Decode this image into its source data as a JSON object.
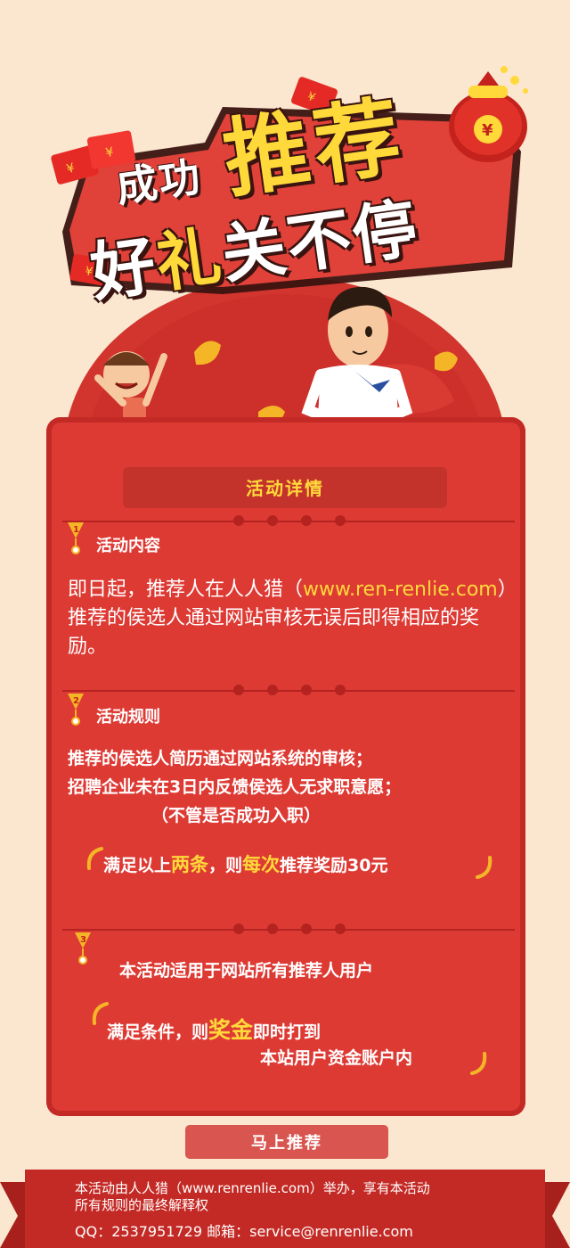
{
  "hero": {
    "title_line1": "成功",
    "title_big": "推荐",
    "title_line2_a": "好",
    "title_line2_hl": "礼",
    "title_line2_b": "关不停"
  },
  "panel": {
    "title": "活动详情",
    "section1": {
      "number": "1",
      "title": "活动内容",
      "body_a": "即日起，推荐人在人人猎（",
      "body_link": "www.ren-renlie.com",
      "body_b": "）推荐的侯选人通过网站审核无误后即得相应的奖励。"
    },
    "section2": {
      "number": "2",
      "title": "活动规则",
      "rule1": "推荐的侯选人简历通过网站系统的审核；",
      "rule2": "招聘企业未在3日内反馈侯选人无求职意愿；",
      "rule_note": "（不管是否成功入职）",
      "reward_a": "满足以上",
      "reward_hl1": "两条",
      "reward_b": "，则",
      "reward_hl2": "每次",
      "reward_c": "推荐奖励30元"
    },
    "section3": {
      "number": "3",
      "line1": "本活动适用于网站所有推荐人用户",
      "pay_a": "满足条件，则",
      "pay_hl": "奖金",
      "pay_b": "即时打到",
      "pay_line2": "本站用户资金账户内"
    }
  },
  "cta": {
    "label": "马上推荐"
  },
  "footer": {
    "line1": "本活动由人人猎（www.renrenlie.com）举办，享有本活动",
    "line2": "所有规则的最终解释权",
    "qq_label": "QQ：",
    "qq_value": "2537951729",
    "email_label": "邮箱：",
    "email_value": "service@renrenlie.com"
  },
  "colors": {
    "background": "#fbe6cf",
    "panel_red": "#de3a34",
    "accent_yellow": "#ffd93a",
    "ribbon_red": "#c42a25"
  }
}
